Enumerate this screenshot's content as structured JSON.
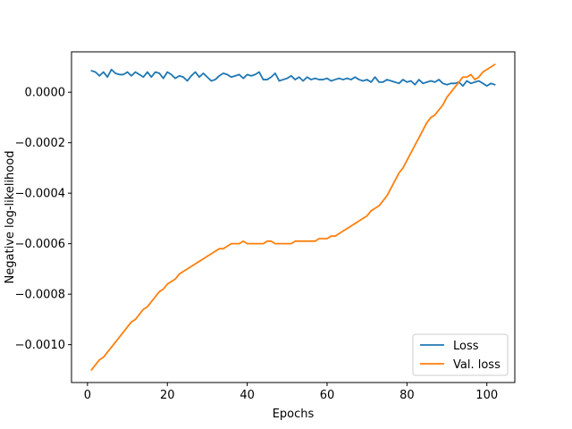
{
  "chart_data": {
    "type": "line",
    "title": "",
    "xlabel": "Epochs",
    "ylabel": "Negative log-likelihood",
    "xlim": [
      -4,
      107
    ],
    "ylim": [
      -0.00115,
      0.00016
    ],
    "xticks": [
      0,
      20,
      40,
      60,
      80,
      100
    ],
    "yticks": [
      0.0,
      -0.0002,
      -0.0004,
      -0.0006,
      -0.0008,
      -0.001
    ],
    "ytick_labels": [
      "0.0000",
      "−0.0002",
      "−0.0004",
      "−0.0006",
      "−0.0008",
      "−0.0010"
    ],
    "grid": false,
    "legend_position": "lower-right",
    "series": [
      {
        "name": "Loss",
        "color": "#1f77b4",
        "x": [
          1,
          2,
          3,
          4,
          5,
          6,
          7,
          8,
          9,
          10,
          11,
          12,
          13,
          14,
          15,
          16,
          17,
          18,
          19,
          20,
          21,
          22,
          23,
          24,
          25,
          26,
          27,
          28,
          29,
          30,
          31,
          32,
          33,
          34,
          35,
          36,
          37,
          38,
          39,
          40,
          41,
          42,
          43,
          44,
          45,
          46,
          47,
          48,
          49,
          50,
          51,
          52,
          53,
          54,
          55,
          56,
          57,
          58,
          59,
          60,
          61,
          62,
          63,
          64,
          65,
          66,
          67,
          68,
          69,
          70,
          71,
          72,
          73,
          74,
          75,
          76,
          77,
          78,
          79,
          80,
          81,
          82,
          83,
          84,
          85,
          86,
          87,
          88,
          89,
          90,
          91,
          92,
          93,
          94,
          95,
          96,
          97,
          98,
          99,
          100,
          101,
          102
        ],
        "y": [
          8.5e-05,
          8e-05,
          6.5e-05,
          8e-05,
          6e-05,
          9e-05,
          7.5e-05,
          7e-05,
          7e-05,
          8e-05,
          6.5e-05,
          8e-05,
          7e-05,
          6e-05,
          8e-05,
          6e-05,
          8e-05,
          7.5e-05,
          5.5e-05,
          8e-05,
          7e-05,
          5.5e-05,
          6.5e-05,
          6e-05,
          4.5e-05,
          6.5e-05,
          8e-05,
          6e-05,
          7.5e-05,
          6e-05,
          4.5e-05,
          5e-05,
          6.5e-05,
          7.5e-05,
          7e-05,
          6e-05,
          6.5e-05,
          7e-05,
          5.5e-05,
          7e-05,
          6.5e-05,
          7e-05,
          8e-05,
          5e-05,
          5e-05,
          6e-05,
          7.5e-05,
          4.5e-05,
          5e-05,
          5.5e-05,
          6.5e-05,
          5e-05,
          6e-05,
          4.5e-05,
          6e-05,
          5e-05,
          5.5e-05,
          5e-05,
          5e-05,
          5.5e-05,
          4.5e-05,
          5e-05,
          5.5e-05,
          5e-05,
          5.5e-05,
          5e-05,
          6e-05,
          5e-05,
          4.5e-05,
          5e-05,
          4e-05,
          6e-05,
          4e-05,
          4e-05,
          5e-05,
          4.5e-05,
          4e-05,
          3.5e-05,
          5e-05,
          4e-05,
          4.5e-05,
          3e-05,
          5e-05,
          3.5e-05,
          4e-05,
          4.5e-05,
          4e-05,
          5e-05,
          3.5e-05,
          3e-05,
          3.5e-05,
          3.5e-05,
          4e-05,
          2.5e-05,
          4.5e-05,
          3.5e-05,
          4e-05,
          4.5e-05,
          3.5e-05,
          2.5e-05,
          3.5e-05,
          3e-05
        ]
      },
      {
        "name": "Val. loss",
        "color": "#ff7f0e",
        "x": [
          1,
          2,
          3,
          4,
          5,
          6,
          7,
          8,
          9,
          10,
          11,
          12,
          13,
          14,
          15,
          16,
          17,
          18,
          19,
          20,
          21,
          22,
          23,
          24,
          25,
          26,
          27,
          28,
          29,
          30,
          31,
          32,
          33,
          34,
          35,
          36,
          37,
          38,
          39,
          40,
          41,
          42,
          43,
          44,
          45,
          46,
          47,
          48,
          49,
          50,
          51,
          52,
          53,
          54,
          55,
          56,
          57,
          58,
          59,
          60,
          61,
          62,
          63,
          64,
          65,
          66,
          67,
          68,
          69,
          70,
          71,
          72,
          73,
          74,
          75,
          76,
          77,
          78,
          79,
          80,
          81,
          82,
          83,
          84,
          85,
          86,
          87,
          88,
          89,
          90,
          91,
          92,
          93,
          94,
          95,
          96,
          97,
          98,
          99,
          100,
          101,
          102
        ],
        "y": [
          -0.0011,
          -0.00108,
          -0.00106,
          -0.00105,
          -0.00103,
          -0.00101,
          -0.00099,
          -0.00097,
          -0.00095,
          -0.00093,
          -0.00091,
          -0.0009,
          -0.00088,
          -0.00086,
          -0.00085,
          -0.00083,
          -0.00081,
          -0.00079,
          -0.00078,
          -0.00076,
          -0.00075,
          -0.00074,
          -0.00072,
          -0.00071,
          -0.0007,
          -0.00069,
          -0.00068,
          -0.00067,
          -0.00066,
          -0.00065,
          -0.00064,
          -0.00063,
          -0.00062,
          -0.00062,
          -0.00061,
          -0.0006,
          -0.0006,
          -0.0006,
          -0.00059,
          -0.0006,
          -0.0006,
          -0.0006,
          -0.0006,
          -0.0006,
          -0.00059,
          -0.00059,
          -0.0006,
          -0.0006,
          -0.0006,
          -0.0006,
          -0.0006,
          -0.00059,
          -0.00059,
          -0.00059,
          -0.00059,
          -0.00059,
          -0.00059,
          -0.00058,
          -0.00058,
          -0.00058,
          -0.00057,
          -0.00057,
          -0.00056,
          -0.00055,
          -0.00054,
          -0.00053,
          -0.00052,
          -0.00051,
          -0.0005,
          -0.00049,
          -0.00047,
          -0.00046,
          -0.00045,
          -0.00043,
          -0.00041,
          -0.00038,
          -0.00035,
          -0.00032,
          -0.0003,
          -0.00027,
          -0.00024,
          -0.00021,
          -0.00018,
          -0.00015,
          -0.00012,
          -0.0001,
          -9e-05,
          -7e-05,
          -5e-05,
          -2e-05,
          0.0,
          2e-05,
          4e-05,
          6e-05,
          6e-05,
          7e-05,
          5e-05,
          6e-05,
          8e-05,
          9e-05,
          0.0001,
          0.00011
        ]
      }
    ]
  }
}
